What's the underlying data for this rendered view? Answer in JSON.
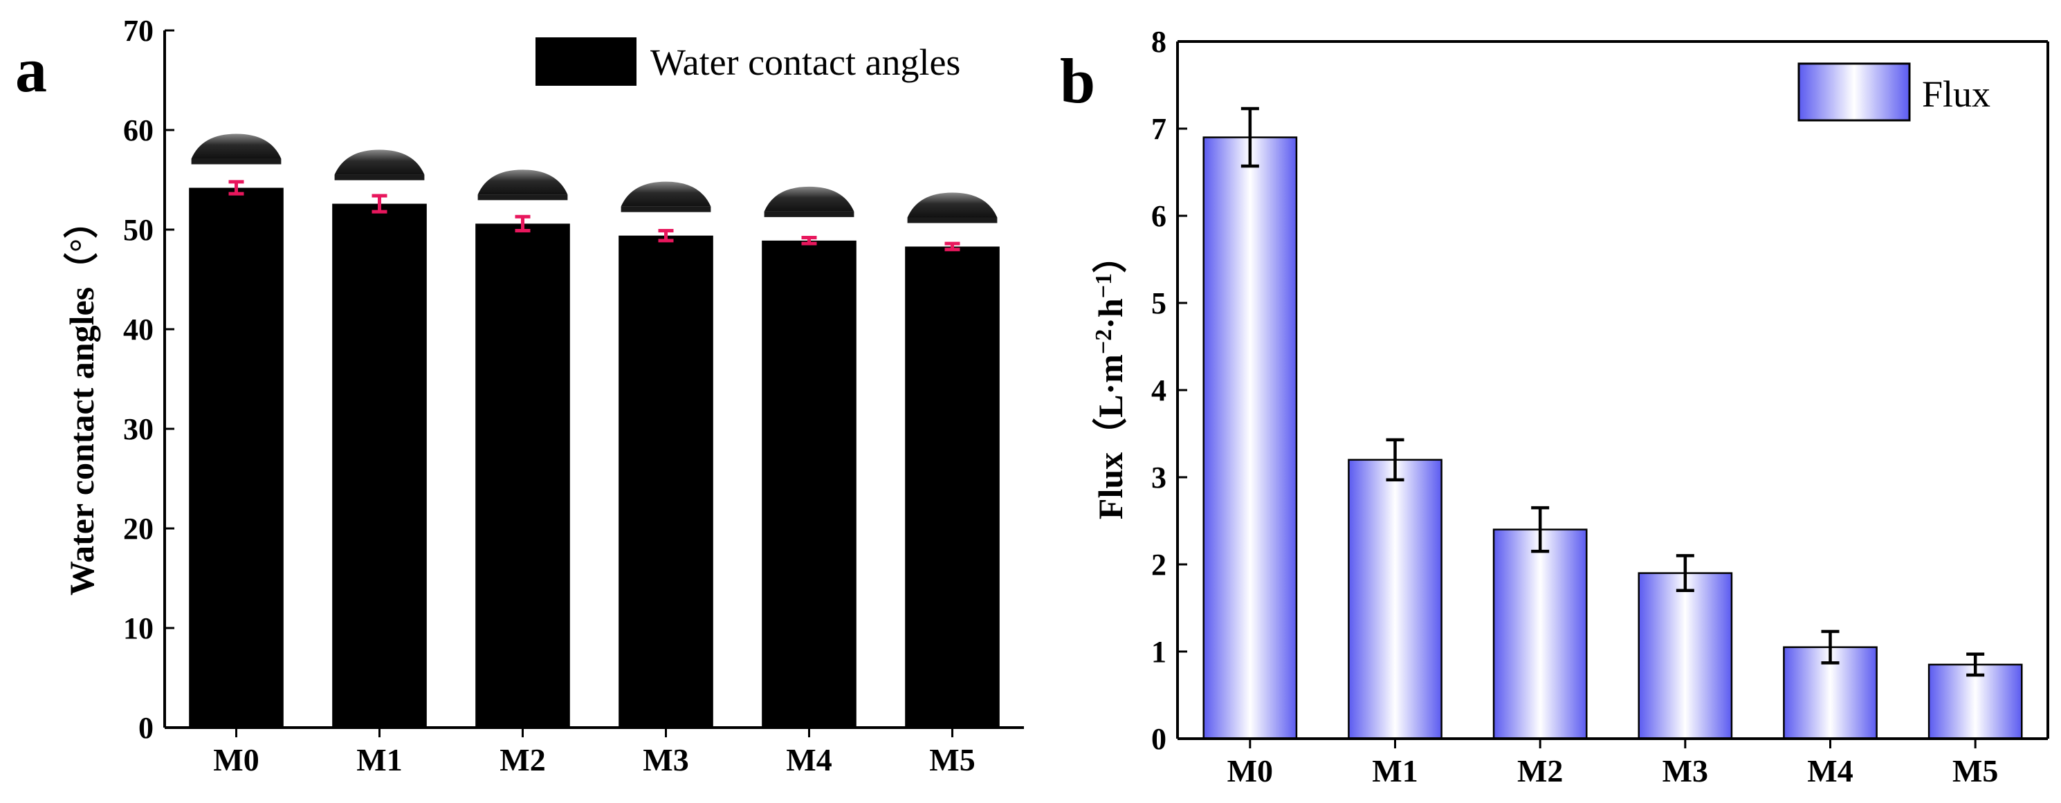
{
  "chart_data": [
    {
      "panel": "a",
      "type": "bar",
      "categories": [
        "M0",
        "M1",
        "M2",
        "M3",
        "M4",
        "M5"
      ],
      "series": [
        {
          "name": "Water contact angles",
          "values": [
            54.2,
            52.6,
            50.6,
            49.4,
            48.9,
            48.3
          ],
          "errors": [
            0.6,
            0.8,
            0.7,
            0.5,
            0.3,
            0.3
          ],
          "bar_color": "#000000",
          "error_color": "#e8175d"
        }
      ],
      "title": "",
      "xlabel": "",
      "ylabel": "Water contact angles（°）",
      "ylim": [
        0,
        70
      ],
      "yticks": [
        0,
        10,
        20,
        30,
        40,
        50,
        60,
        70
      ],
      "legend": {
        "label": "Water contact angles",
        "position": "top-right"
      },
      "grid": false,
      "annotations": "droplet contact-angle image above each bar"
    },
    {
      "panel": "b",
      "type": "bar",
      "categories": [
        "M0",
        "M1",
        "M2",
        "M3",
        "M4",
        "M5"
      ],
      "series": [
        {
          "name": "Flux",
          "values": [
            6.9,
            3.2,
            2.4,
            1.9,
            1.05,
            0.85
          ],
          "errors": [
            0.33,
            0.23,
            0.25,
            0.2,
            0.18,
            0.12
          ],
          "gradient_colors": [
            "#5b5bf0",
            "#ffffff",
            "#5b5bf0"
          ],
          "error_color": "#000000"
        }
      ],
      "title": "",
      "xlabel": "",
      "ylabel_parts": {
        "main": "Flux（L·m",
        "exp1": "−2",
        "mid": "·h",
        "exp2": "−1",
        "end": "）"
      },
      "ylim": [
        0,
        8
      ],
      "yticks": [
        0,
        1,
        2,
        3,
        4,
        5,
        6,
        7,
        8
      ],
      "legend": {
        "label": "Flux",
        "position": "top-right"
      },
      "grid": false
    }
  ]
}
